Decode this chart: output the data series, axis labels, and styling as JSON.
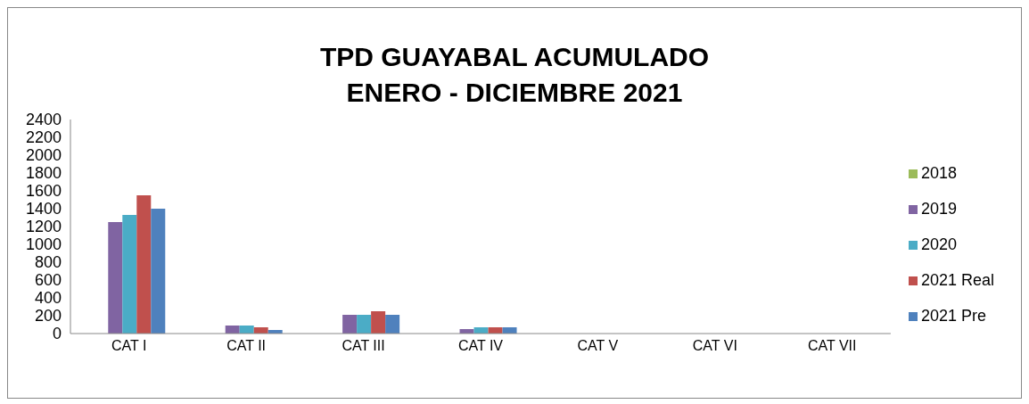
{
  "chart_data": {
    "type": "bar",
    "title": "TPD GUAYABAL  ACUMULADO\nENERO - DICIEMBRE 2021",
    "categories": [
      "CAT I",
      "CAT II",
      "CAT III",
      "CAT IV",
      "CAT V",
      "CAT VI",
      "CAT VII"
    ],
    "series": [
      {
        "name": "2018",
        "color": "#9bbb59",
        "values": [
          0,
          0,
          0,
          0,
          0,
          0,
          0
        ]
      },
      {
        "name": "2019",
        "color": "#8064a2",
        "values": [
          1250,
          90,
          210,
          50,
          0,
          0,
          0
        ]
      },
      {
        "name": "2020",
        "color": "#4bacc6",
        "values": [
          1330,
          90,
          210,
          70,
          0,
          0,
          0
        ]
      },
      {
        "name": "2021 Real",
        "color": "#c0504d",
        "values": [
          1550,
          70,
          250,
          70,
          0,
          0,
          0
        ]
      },
      {
        "name": "2021 Pre",
        "color": "#4f81bd",
        "values": [
          1400,
          40,
          210,
          70,
          0,
          0,
          0
        ]
      }
    ],
    "ylim": [
      0,
      2400
    ],
    "yticks": [
      0,
      200,
      400,
      600,
      800,
      1000,
      1200,
      1400,
      1600,
      1800,
      2000,
      2200,
      2400
    ],
    "grid": false,
    "legend": "right"
  }
}
